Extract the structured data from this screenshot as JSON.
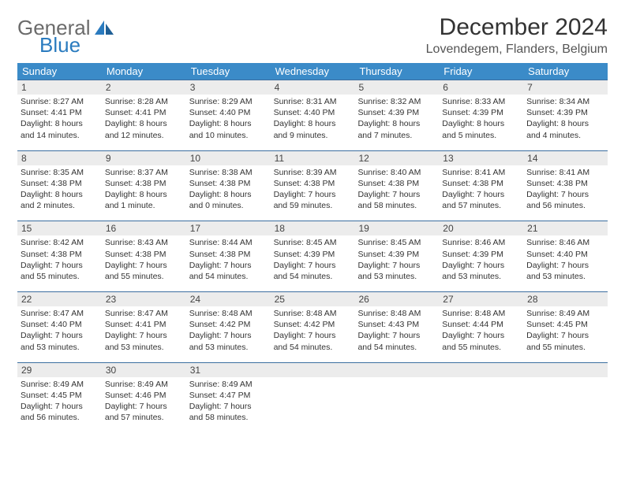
{
  "brand": {
    "word1": "General",
    "word2": "Blue"
  },
  "title": "December 2024",
  "location": "Lovendegem, Flanders, Belgium",
  "colors": {
    "header_bg": "#3b8bc8",
    "header_text": "#ffffff",
    "rule": "#3b6ea0",
    "daynum_bg": "#ececec",
    "body_text": "#333333",
    "brand_gray": "#6b6b6b",
    "brand_blue": "#2a7bbf"
  },
  "weekdays": [
    "Sunday",
    "Monday",
    "Tuesday",
    "Wednesday",
    "Thursday",
    "Friday",
    "Saturday"
  ],
  "weeks": [
    [
      {
        "n": "1",
        "sr": "Sunrise: 8:27 AM",
        "ss": "Sunset: 4:41 PM",
        "d1": "Daylight: 8 hours",
        "d2": "and 14 minutes."
      },
      {
        "n": "2",
        "sr": "Sunrise: 8:28 AM",
        "ss": "Sunset: 4:41 PM",
        "d1": "Daylight: 8 hours",
        "d2": "and 12 minutes."
      },
      {
        "n": "3",
        "sr": "Sunrise: 8:29 AM",
        "ss": "Sunset: 4:40 PM",
        "d1": "Daylight: 8 hours",
        "d2": "and 10 minutes."
      },
      {
        "n": "4",
        "sr": "Sunrise: 8:31 AM",
        "ss": "Sunset: 4:40 PM",
        "d1": "Daylight: 8 hours",
        "d2": "and 9 minutes."
      },
      {
        "n": "5",
        "sr": "Sunrise: 8:32 AM",
        "ss": "Sunset: 4:39 PM",
        "d1": "Daylight: 8 hours",
        "d2": "and 7 minutes."
      },
      {
        "n": "6",
        "sr": "Sunrise: 8:33 AM",
        "ss": "Sunset: 4:39 PM",
        "d1": "Daylight: 8 hours",
        "d2": "and 5 minutes."
      },
      {
        "n": "7",
        "sr": "Sunrise: 8:34 AM",
        "ss": "Sunset: 4:39 PM",
        "d1": "Daylight: 8 hours",
        "d2": "and 4 minutes."
      }
    ],
    [
      {
        "n": "8",
        "sr": "Sunrise: 8:35 AM",
        "ss": "Sunset: 4:38 PM",
        "d1": "Daylight: 8 hours",
        "d2": "and 2 minutes."
      },
      {
        "n": "9",
        "sr": "Sunrise: 8:37 AM",
        "ss": "Sunset: 4:38 PM",
        "d1": "Daylight: 8 hours",
        "d2": "and 1 minute."
      },
      {
        "n": "10",
        "sr": "Sunrise: 8:38 AM",
        "ss": "Sunset: 4:38 PM",
        "d1": "Daylight: 8 hours",
        "d2": "and 0 minutes."
      },
      {
        "n": "11",
        "sr": "Sunrise: 8:39 AM",
        "ss": "Sunset: 4:38 PM",
        "d1": "Daylight: 7 hours",
        "d2": "and 59 minutes."
      },
      {
        "n": "12",
        "sr": "Sunrise: 8:40 AM",
        "ss": "Sunset: 4:38 PM",
        "d1": "Daylight: 7 hours",
        "d2": "and 58 minutes."
      },
      {
        "n": "13",
        "sr": "Sunrise: 8:41 AM",
        "ss": "Sunset: 4:38 PM",
        "d1": "Daylight: 7 hours",
        "d2": "and 57 minutes."
      },
      {
        "n": "14",
        "sr": "Sunrise: 8:41 AM",
        "ss": "Sunset: 4:38 PM",
        "d1": "Daylight: 7 hours",
        "d2": "and 56 minutes."
      }
    ],
    [
      {
        "n": "15",
        "sr": "Sunrise: 8:42 AM",
        "ss": "Sunset: 4:38 PM",
        "d1": "Daylight: 7 hours",
        "d2": "and 55 minutes."
      },
      {
        "n": "16",
        "sr": "Sunrise: 8:43 AM",
        "ss": "Sunset: 4:38 PM",
        "d1": "Daylight: 7 hours",
        "d2": "and 55 minutes."
      },
      {
        "n": "17",
        "sr": "Sunrise: 8:44 AM",
        "ss": "Sunset: 4:38 PM",
        "d1": "Daylight: 7 hours",
        "d2": "and 54 minutes."
      },
      {
        "n": "18",
        "sr": "Sunrise: 8:45 AM",
        "ss": "Sunset: 4:39 PM",
        "d1": "Daylight: 7 hours",
        "d2": "and 54 minutes."
      },
      {
        "n": "19",
        "sr": "Sunrise: 8:45 AM",
        "ss": "Sunset: 4:39 PM",
        "d1": "Daylight: 7 hours",
        "d2": "and 53 minutes."
      },
      {
        "n": "20",
        "sr": "Sunrise: 8:46 AM",
        "ss": "Sunset: 4:39 PM",
        "d1": "Daylight: 7 hours",
        "d2": "and 53 minutes."
      },
      {
        "n": "21",
        "sr": "Sunrise: 8:46 AM",
        "ss": "Sunset: 4:40 PM",
        "d1": "Daylight: 7 hours",
        "d2": "and 53 minutes."
      }
    ],
    [
      {
        "n": "22",
        "sr": "Sunrise: 8:47 AM",
        "ss": "Sunset: 4:40 PM",
        "d1": "Daylight: 7 hours",
        "d2": "and 53 minutes."
      },
      {
        "n": "23",
        "sr": "Sunrise: 8:47 AM",
        "ss": "Sunset: 4:41 PM",
        "d1": "Daylight: 7 hours",
        "d2": "and 53 minutes."
      },
      {
        "n": "24",
        "sr": "Sunrise: 8:48 AM",
        "ss": "Sunset: 4:42 PM",
        "d1": "Daylight: 7 hours",
        "d2": "and 53 minutes."
      },
      {
        "n": "25",
        "sr": "Sunrise: 8:48 AM",
        "ss": "Sunset: 4:42 PM",
        "d1": "Daylight: 7 hours",
        "d2": "and 54 minutes."
      },
      {
        "n": "26",
        "sr": "Sunrise: 8:48 AM",
        "ss": "Sunset: 4:43 PM",
        "d1": "Daylight: 7 hours",
        "d2": "and 54 minutes."
      },
      {
        "n": "27",
        "sr": "Sunrise: 8:48 AM",
        "ss": "Sunset: 4:44 PM",
        "d1": "Daylight: 7 hours",
        "d2": "and 55 minutes."
      },
      {
        "n": "28",
        "sr": "Sunrise: 8:49 AM",
        "ss": "Sunset: 4:45 PM",
        "d1": "Daylight: 7 hours",
        "d2": "and 55 minutes."
      }
    ],
    [
      {
        "n": "29",
        "sr": "Sunrise: 8:49 AM",
        "ss": "Sunset: 4:45 PM",
        "d1": "Daylight: 7 hours",
        "d2": "and 56 minutes."
      },
      {
        "n": "30",
        "sr": "Sunrise: 8:49 AM",
        "ss": "Sunset: 4:46 PM",
        "d1": "Daylight: 7 hours",
        "d2": "and 57 minutes."
      },
      {
        "n": "31",
        "sr": "Sunrise: 8:49 AM",
        "ss": "Sunset: 4:47 PM",
        "d1": "Daylight: 7 hours",
        "d2": "and 58 minutes."
      },
      null,
      null,
      null,
      null
    ]
  ]
}
